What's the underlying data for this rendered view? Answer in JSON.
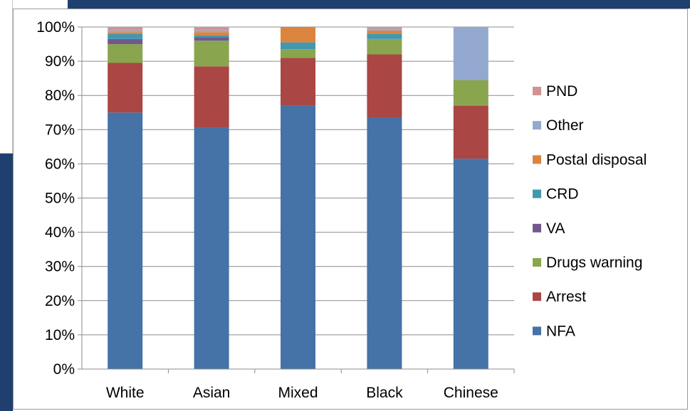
{
  "chart_data": {
    "type": "bar",
    "stacked": true,
    "categories": [
      "White",
      "Asian",
      "Mixed",
      "Black",
      "Chinese"
    ],
    "series": [
      {
        "name": "NFA",
        "color": "#4572a7",
        "values": [
          75,
          70.5,
          77,
          73.5,
          61.5
        ]
      },
      {
        "name": "Arrest",
        "color": "#aa4643",
        "values": [
          14.5,
          18,
          14,
          18.5,
          15.5
        ]
      },
      {
        "name": "Drugs warning",
        "color": "#89a54e",
        "values": [
          5.5,
          7.5,
          2.5,
          4.5,
          7.5
        ]
      },
      {
        "name": "VA",
        "color": "#71588f",
        "values": [
          1.5,
          1,
          0,
          0,
          0
        ]
      },
      {
        "name": "CRD",
        "color": "#4198af",
        "values": [
          1.5,
          0.5,
          2,
          1.5,
          0
        ]
      },
      {
        "name": "Postal disposal",
        "color": "#db843d",
        "values": [
          0.5,
          1,
          4.5,
          1,
          0
        ]
      },
      {
        "name": "Other",
        "color": "#93a9cf",
        "values": [
          0.5,
          0.5,
          0,
          0.5,
          15.5
        ]
      },
      {
        "name": "PND",
        "color": "#d19392",
        "values": [
          1,
          1,
          0,
          0.5,
          0
        ]
      }
    ],
    "y_ticks": [
      "0%",
      "10%",
      "20%",
      "30%",
      "40%",
      "50%",
      "60%",
      "70%",
      "80%",
      "90%",
      "100%"
    ],
    "ylim": [
      0,
      100
    ],
    "grid": true,
    "legend_position": "right",
    "legend_order": [
      "PND",
      "Other",
      "Postal disposal",
      "CRD",
      "VA",
      "Drugs warning",
      "Arrest",
      "NFA"
    ],
    "title": "",
    "xlabel": "",
    "ylabel": ""
  }
}
